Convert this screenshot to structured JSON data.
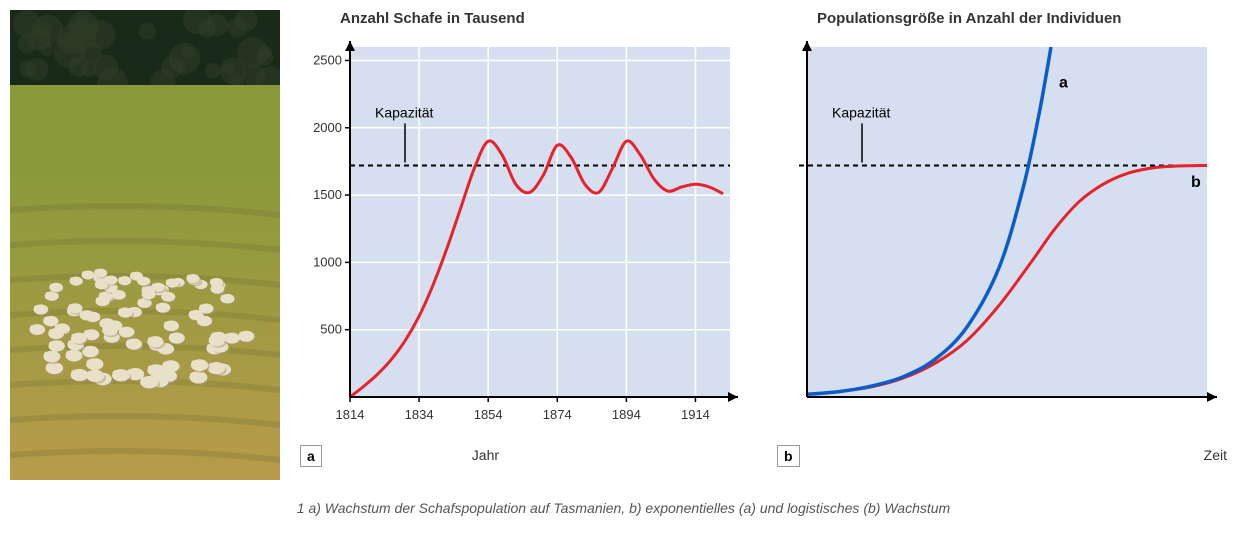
{
  "photo": {
    "sky_color": "#2d3d28",
    "tree_color": "#1a2a18",
    "grass_near": "#b89b4a",
    "grass_far": "#8a9a3a",
    "grass_shadow": "#6b6830",
    "sheep_body": "#e8e0c8",
    "sheep_shadow": "#a89870"
  },
  "chart_a": {
    "title": "Anzahl Schafe in Tausend",
    "panel_label": "a",
    "x_label": "Jahr",
    "bg_color": "#d5dff0",
    "grid_color": "#ffffff",
    "axis_color": "#000000",
    "xlim": [
      1814,
      1924
    ],
    "ylim": [
      0,
      2600
    ],
    "x_ticks": [
      1814,
      1834,
      1854,
      1874,
      1894,
      1914
    ],
    "y_ticks": [
      500,
      1000,
      1500,
      2000,
      2500
    ],
    "capacity": {
      "label": "Kapazität",
      "value": 1720,
      "line_color": "#000000",
      "label_fontsize": 14
    },
    "curve": {
      "color": "#e6232a",
      "width": 3,
      "points": [
        [
          1814,
          0
        ],
        [
          1818,
          80
        ],
        [
          1822,
          170
        ],
        [
          1826,
          280
        ],
        [
          1830,
          420
        ],
        [
          1834,
          600
        ],
        [
          1838,
          830
        ],
        [
          1842,
          1100
        ],
        [
          1846,
          1400
        ],
        [
          1850,
          1700
        ],
        [
          1854,
          1900
        ],
        [
          1858,
          1800
        ],
        [
          1862,
          1580
        ],
        [
          1866,
          1520
        ],
        [
          1870,
          1650
        ],
        [
          1874,
          1870
        ],
        [
          1878,
          1780
        ],
        [
          1882,
          1580
        ],
        [
          1886,
          1520
        ],
        [
          1890,
          1700
        ],
        [
          1894,
          1900
        ],
        [
          1898,
          1800
        ],
        [
          1902,
          1620
        ],
        [
          1906,
          1530
        ],
        [
          1910,
          1560
        ],
        [
          1914,
          1580
        ],
        [
          1918,
          1560
        ],
        [
          1922,
          1510
        ]
      ]
    },
    "title_fontsize": 15,
    "tick_fontsize": 13
  },
  "chart_b": {
    "title": "Populationsgröße in Anzahl der Individuen",
    "panel_label": "b",
    "x_label": "Zeit",
    "bg_color": "#d5dff0",
    "axis_color": "#000000",
    "xlim": [
      0,
      100
    ],
    "ylim": [
      0,
      2600
    ],
    "capacity": {
      "label": "Kapazität",
      "value": 1720,
      "line_color": "#000000",
      "label_fontsize": 14
    },
    "curve_a": {
      "label": "a",
      "color": "#0b5cc7",
      "width": 3.5,
      "points": [
        [
          0,
          20
        ],
        [
          8,
          40
        ],
        [
          16,
          80
        ],
        [
          24,
          150
        ],
        [
          32,
          280
        ],
        [
          40,
          520
        ],
        [
          48,
          960
        ],
        [
          54,
          1550
        ],
        [
          58,
          2100
        ],
        [
          61,
          2600
        ]
      ],
      "label_pos": [
        63,
        2300
      ]
    },
    "curve_b": {
      "label": "b",
      "color": "#e6232a",
      "width": 3,
      "points": [
        [
          0,
          20
        ],
        [
          8,
          40
        ],
        [
          16,
          75
        ],
        [
          24,
          140
        ],
        [
          32,
          250
        ],
        [
          40,
          420
        ],
        [
          48,
          680
        ],
        [
          56,
          1000
        ],
        [
          62,
          1250
        ],
        [
          68,
          1450
        ],
        [
          74,
          1580
        ],
        [
          80,
          1660
        ],
        [
          86,
          1700
        ],
        [
          92,
          1715
        ],
        [
          100,
          1720
        ]
      ],
      "label_pos": [
        96,
        1560
      ]
    },
    "title_fontsize": 15
  },
  "caption": "1 a) Wachstum der Schafspopulation auf Tasmanien, b) exponentielles (a) und logistisches (b) Wachstum"
}
